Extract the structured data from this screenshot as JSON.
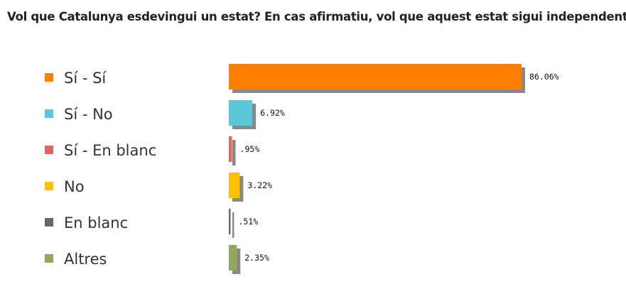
{
  "chart_data": {
    "type": "bar",
    "orientation": "horizontal",
    "title": "Vol que Catalunya esdevingui un estat? En cas afirmatiu, vol que aquest estat sigui independent?",
    "categories": [
      "Sí - Sí",
      "Sí - No",
      "Sí - En blanc",
      "No",
      "En blanc",
      "Altres"
    ],
    "values": [
      86.06,
      6.92,
      0.95,
      3.22,
      0.51,
      2.35
    ],
    "value_labels": [
      "86.06%",
      "6.92%",
      ".95%",
      "3.22%",
      ".51%",
      "2.35%"
    ],
    "colors": [
      "#ff7f00",
      "#5bc8d9",
      "#e06666",
      "#ffc000",
      "#666666",
      "#8faa5a"
    ],
    "shadow_color": "#888888",
    "legend_placement": "left",
    "grid": false
  }
}
